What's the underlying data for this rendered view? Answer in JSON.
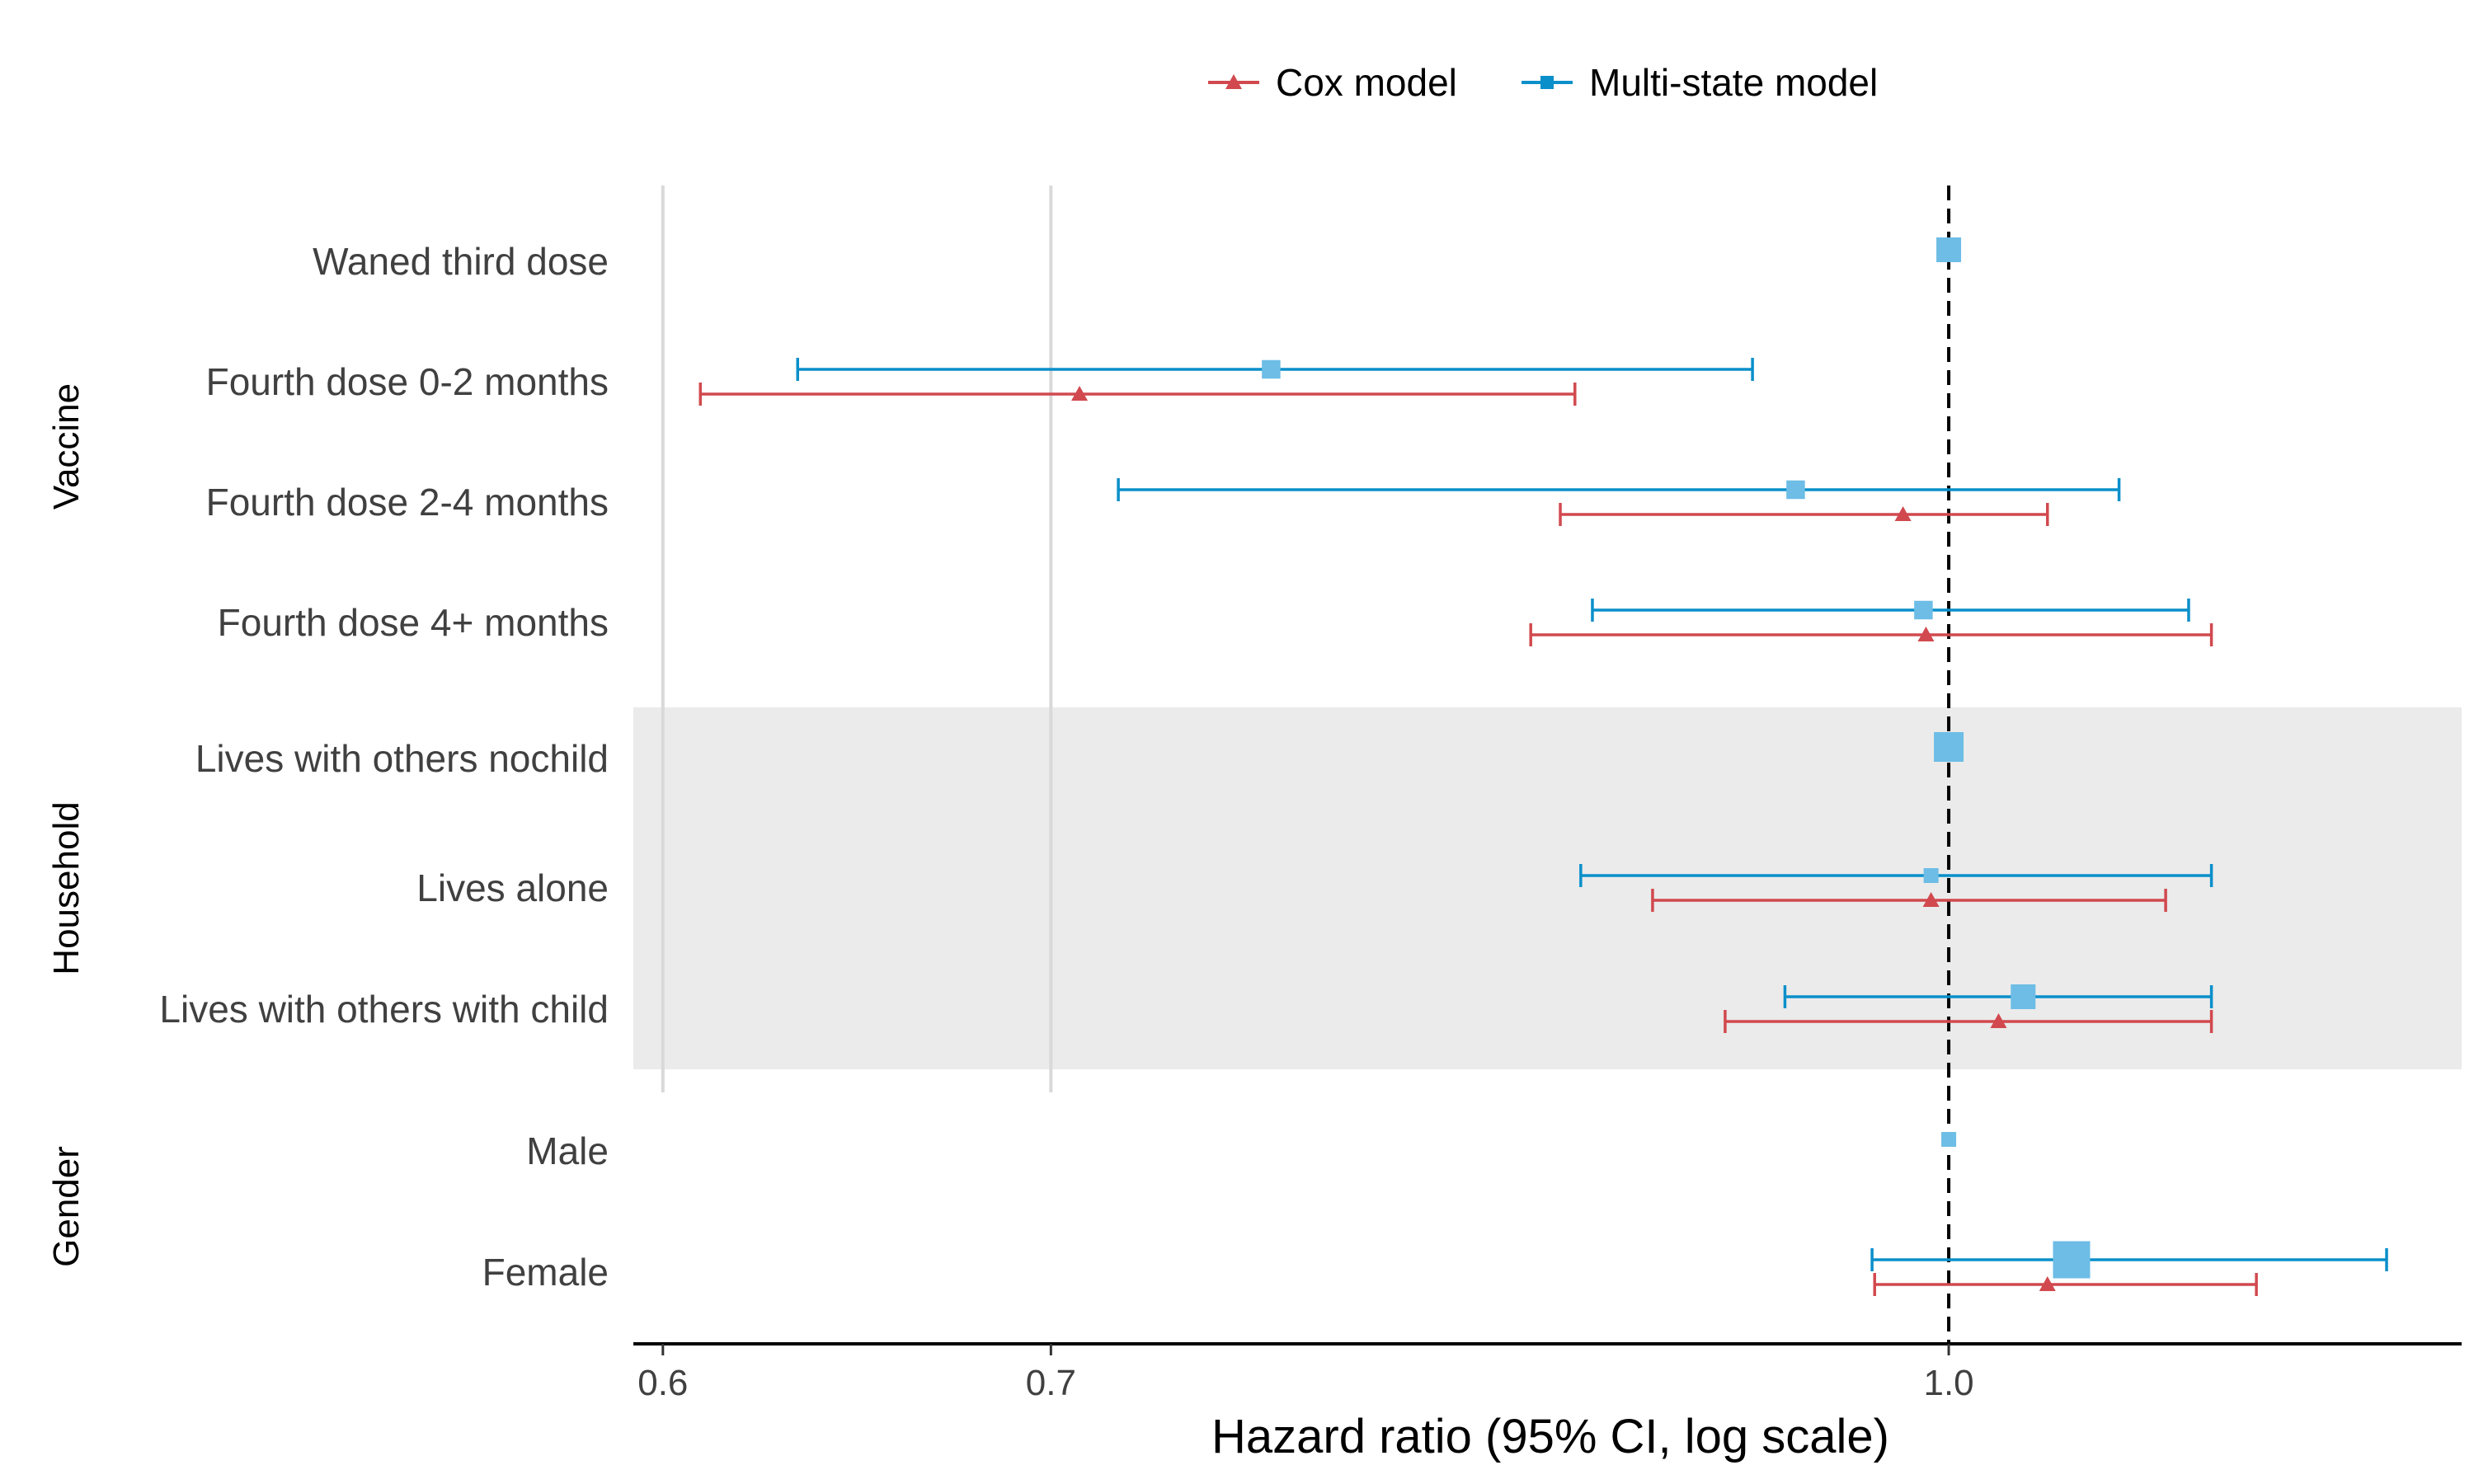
{
  "chart_data": {
    "type": "forest",
    "xlabel": "Hazard ratio (95% CI, log scale)",
    "x_scale": "log",
    "xlim": [
      0.593,
      1.226
    ],
    "x_ticks": [
      0.6,
      0.7,
      1.0
    ],
    "x_tick_labels": [
      "0.6",
      "0.7",
      "1.0"
    ],
    "reference_line": 1.0,
    "legend": {
      "position": "top",
      "items": [
        {
          "label": "Cox model",
          "color": "#d1494e",
          "marker": "triangle"
        },
        {
          "label": "Multi-state model",
          "color": "#0a8fca",
          "marker": "square"
        }
      ]
    },
    "reference_marker_color": "#6dbde6",
    "groups": [
      {
        "name": "Vaccine",
        "shaded": false,
        "rows": [
          {
            "label": "Waned third dose",
            "reference": true,
            "ref_size": 1.0
          },
          {
            "label": "Fourth dose 0-2 months",
            "cox": {
              "est": 0.708,
              "lo": 0.609,
              "hi": 0.862
            },
            "ms": {
              "est": 0.764,
              "lo": 0.633,
              "hi": 0.925,
              "size": 0.75
            }
          },
          {
            "label": "Fourth dose 2-4 months",
            "cox": {
              "est": 0.982,
              "lo": 0.857,
              "hi": 1.04
            },
            "ms": {
              "est": 0.941,
              "lo": 0.719,
              "hi": 1.07,
              "size": 0.75
            }
          },
          {
            "label": "Fourth dose 4+ months",
            "cox": {
              "est": 0.991,
              "lo": 0.847,
              "hi": 1.11
            },
            "ms": {
              "est": 0.99,
              "lo": 0.868,
              "hi": 1.1,
              "size": 0.75
            }
          }
        ]
      },
      {
        "name": "Household",
        "shaded": true,
        "rows": [
          {
            "label": "Lives with others nochild",
            "reference": true,
            "ref_size": 1.2
          },
          {
            "label": "Lives alone",
            "cox": {
              "est": 0.993,
              "lo": 0.889,
              "hi": 1.09
            },
            "ms": {
              "est": 0.993,
              "lo": 0.864,
              "hi": 1.11,
              "size": 0.6
            }
          },
          {
            "label": "Lives with others with child",
            "cox": {
              "est": 1.02,
              "lo": 0.915,
              "hi": 1.11
            },
            "ms": {
              "est": 1.03,
              "lo": 0.937,
              "hi": 1.11,
              "size": 1.0
            }
          }
        ]
      },
      {
        "name": "Gender",
        "shaded": false,
        "rows": [
          {
            "label": "Male",
            "reference": true,
            "ref_size": 0.6
          },
          {
            "label": "Female",
            "cox": {
              "est": 1.04,
              "lo": 0.971,
              "hi": 1.13
            },
            "ms": {
              "est": 1.05,
              "lo": 0.97,
              "hi": 1.19,
              "size": 1.5
            }
          }
        ]
      }
    ]
  }
}
